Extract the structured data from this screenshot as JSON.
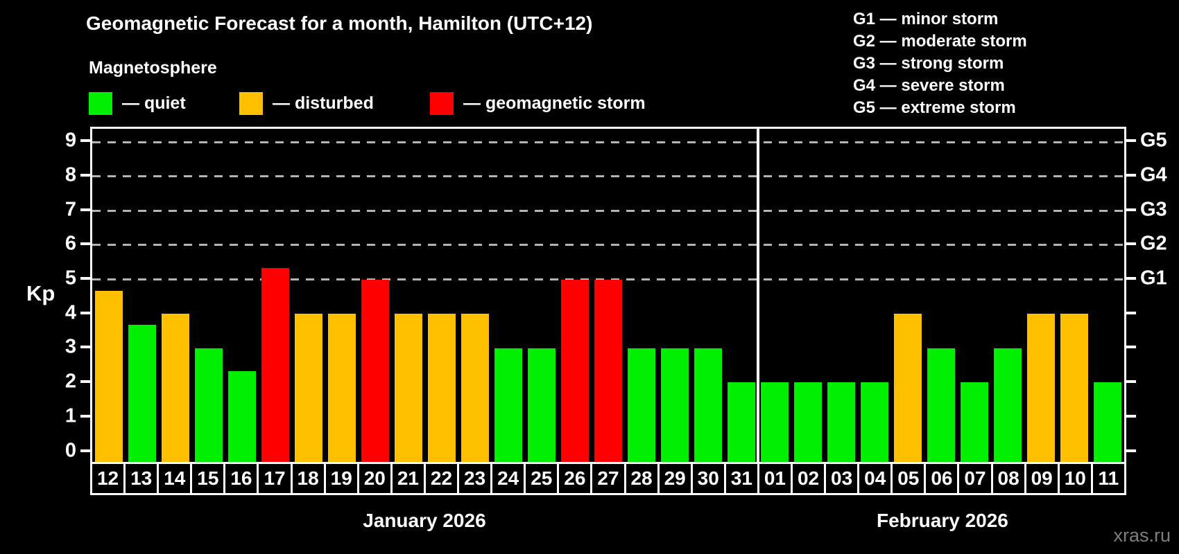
{
  "title": "Geomagnetic Forecast for a month, Hamilton (UTC+12)",
  "subtitle": "Magnetosphere",
  "legend": {
    "items": [
      {
        "key": "quiet",
        "label": "— quiet",
        "color": "#00ee00"
      },
      {
        "key": "disturbed",
        "label": "— disturbed",
        "color": "#ffc000"
      },
      {
        "key": "storm",
        "label": "— geomagnetic storm",
        "color": "#ff0000"
      }
    ]
  },
  "g_scale_legend": [
    "G1 — minor storm",
    "G2 — moderate storm",
    "G3 — strong storm",
    "G4 — severe storm",
    "G5 — extreme storm"
  ],
  "watermark": "xras.ru",
  "colors": {
    "quiet": "#00ee00",
    "disturbed": "#ffc000",
    "storm": "#ff0000",
    "background": "#000000",
    "text": "#ffffff",
    "grid": "#b4b4b4",
    "watermark": "#7e7e7e"
  },
  "chart_data": {
    "type": "bar",
    "title": "Geomagnetic Forecast for a month, Hamilton (UTC+12)",
    "ylabel": "Kp",
    "ylim": [
      0,
      9.5
    ],
    "yticks": [
      "0",
      "1",
      "2",
      "3",
      "4",
      "5",
      "6",
      "7",
      "8",
      "9"
    ],
    "gridlines_at": [
      5,
      6,
      7,
      8,
      9
    ],
    "grid": "horizontal dashed",
    "legend_position": "top-left",
    "right_axis": [
      {
        "kp": 5,
        "label": "G1"
      },
      {
        "kp": 6,
        "label": "G2"
      },
      {
        "kp": 7,
        "label": "G3"
      },
      {
        "kp": 8,
        "label": "G4"
      },
      {
        "kp": 9,
        "label": "G5"
      }
    ],
    "months": [
      {
        "label": "January 2026",
        "days": 20
      },
      {
        "label": "February 2026",
        "days": 11
      }
    ],
    "bars": [
      {
        "day": "12",
        "kp": 4.67,
        "status": "disturbed"
      },
      {
        "day": "13",
        "kp": 3.67,
        "status": "quiet"
      },
      {
        "day": "14",
        "kp": 4,
        "status": "disturbed"
      },
      {
        "day": "15",
        "kp": 3,
        "status": "quiet"
      },
      {
        "day": "16",
        "kp": 2.33,
        "status": "quiet"
      },
      {
        "day": "17",
        "kp": 5.33,
        "status": "storm"
      },
      {
        "day": "18",
        "kp": 4,
        "status": "disturbed"
      },
      {
        "day": "19",
        "kp": 4,
        "status": "disturbed"
      },
      {
        "day": "20",
        "kp": 5,
        "status": "storm"
      },
      {
        "day": "21",
        "kp": 4,
        "status": "disturbed"
      },
      {
        "day": "22",
        "kp": 4,
        "status": "disturbed"
      },
      {
        "day": "23",
        "kp": 4,
        "status": "disturbed"
      },
      {
        "day": "24",
        "kp": 3,
        "status": "quiet"
      },
      {
        "day": "25",
        "kp": 3,
        "status": "quiet"
      },
      {
        "day": "26",
        "kp": 5,
        "status": "storm"
      },
      {
        "day": "27",
        "kp": 5,
        "status": "storm"
      },
      {
        "day": "28",
        "kp": 3,
        "status": "quiet"
      },
      {
        "day": "29",
        "kp": 3,
        "status": "quiet"
      },
      {
        "day": "30",
        "kp": 3,
        "status": "quiet"
      },
      {
        "day": "31",
        "kp": 2,
        "status": "quiet"
      },
      {
        "day": "01",
        "kp": 2,
        "status": "quiet"
      },
      {
        "day": "02",
        "kp": 2,
        "status": "quiet"
      },
      {
        "day": "03",
        "kp": 2,
        "status": "quiet"
      },
      {
        "day": "04",
        "kp": 2,
        "status": "quiet"
      },
      {
        "day": "05",
        "kp": 4,
        "status": "disturbed"
      },
      {
        "day": "06",
        "kp": 3,
        "status": "quiet"
      },
      {
        "day": "07",
        "kp": 2,
        "status": "quiet"
      },
      {
        "day": "08",
        "kp": 3,
        "status": "quiet"
      },
      {
        "day": "09",
        "kp": 4,
        "status": "disturbed"
      },
      {
        "day": "10",
        "kp": 4,
        "status": "disturbed"
      },
      {
        "day": "11",
        "kp": 2,
        "status": "quiet"
      }
    ]
  }
}
